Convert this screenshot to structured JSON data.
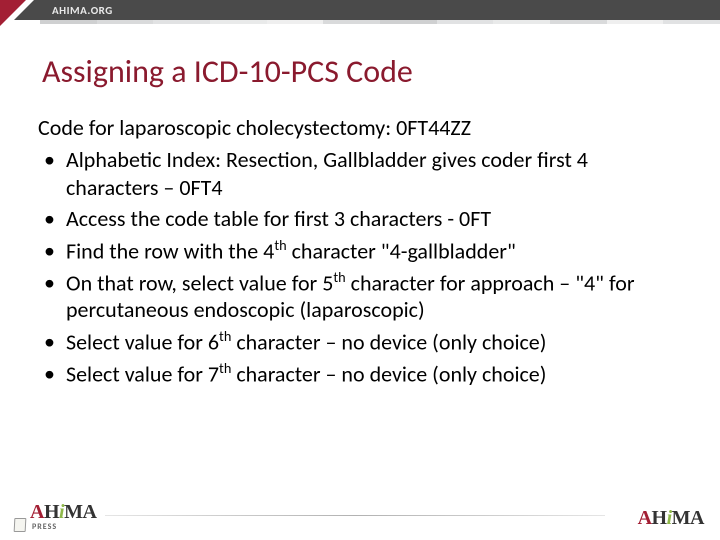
{
  "header": {
    "url": "AHIMA.ORG",
    "stripe_colors": [
      "#cfd0d1",
      "#d9dadb",
      "#e1e2e3",
      "#e9eaea",
      "#efefef",
      "#d9dadb",
      "#cfd0d1",
      "#e1e2e3",
      "#e9eaea",
      "#d9dadb",
      "#efefef",
      "#e1e2e3"
    ]
  },
  "title": "Assigning a ICD-10-PCS Code",
  "body": {
    "intro": "Code for laparoscopic cholecystectomy: 0FT44ZZ",
    "bullets": [
      {
        "html": "Alphabetic Index: Resection, Gallbladder gives coder first 4 characters – 0FT4"
      },
      {
        "html": "Access the code table for first 3 characters - 0FT"
      },
      {
        "html": "Find the row with the 4<sup>th</sup> character \"4-gallbladder\""
      },
      {
        "html": "On that row, select value for 5<sup>th</sup> character for approach – \"4\" for percutaneous endoscopic (laparoscopic)"
      },
      {
        "html": "Select value for 6<sup>th</sup> character – no device (only choice)"
      },
      {
        "html": "Select value for 7<sup>th</sup> character – no device (only choice)"
      }
    ]
  },
  "footer": {
    "press_label": "PRESS",
    "brand": "AHIMA"
  },
  "colors": {
    "title": "#8a1a2e",
    "accent": "#a31f34",
    "text": "#000000",
    "url_bg": "#4a4a4a"
  }
}
